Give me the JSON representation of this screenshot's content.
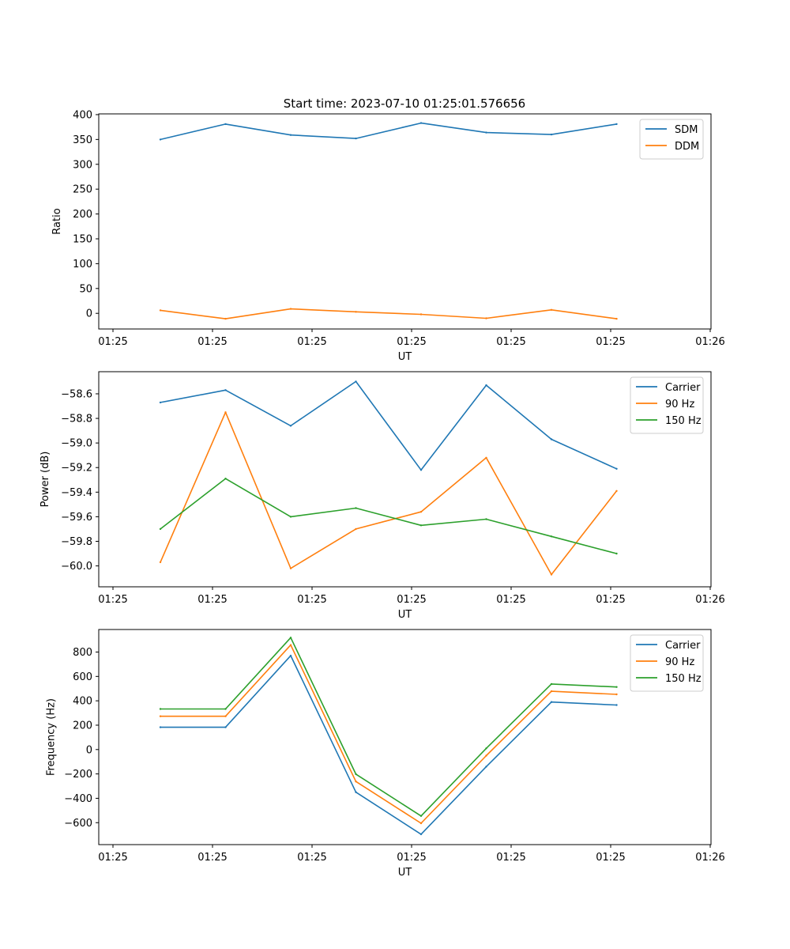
{
  "figure_title": "Start time: 2023-07-10 01:25:01.576656",
  "colors": {
    "blue": "#1f77b4",
    "orange": "#ff7f0e",
    "green": "#2ca02c"
  },
  "chart_data": [
    {
      "type": "line",
      "xlabel": "UT",
      "ylabel": "Ratio",
      "x_tick_labels": [
        "01:25",
        "01:25",
        "01:25",
        "01:25",
        "01:25",
        "01:25",
        "01:25",
        "01:26"
      ],
      "yticks": [
        0,
        50,
        100,
        150,
        200,
        250,
        300,
        350,
        400
      ],
      "ytick_labels": [
        "0",
        "50",
        "100",
        "150",
        "200",
        "250",
        "300",
        "350",
        "400"
      ],
      "ylim": [
        -31.5,
        401.5
      ],
      "legend_loc": "upper right",
      "series": [
        {
          "name": "SDM",
          "color": "#1f77b4",
          "values": [
            350,
            381,
            359,
            352,
            383,
            364,
            360,
            381
          ]
        },
        {
          "name": "DDM",
          "color": "#ff7f0e",
          "values": [
            6,
            -11,
            9,
            3,
            -2,
            -10,
            7,
            -11
          ]
        }
      ]
    },
    {
      "type": "line",
      "xlabel": "UT",
      "ylabel": "Power (dB)",
      "x_tick_labels": [
        "01:25",
        "01:25",
        "01:25",
        "01:25",
        "01:25",
        "01:25",
        "01:25",
        "01:26"
      ],
      "yticks": [
        -60.0,
        -59.8,
        -59.6,
        -59.4,
        -59.2,
        -59.0,
        -58.8,
        -58.6
      ],
      "ytick_labels": [
        "−60.0",
        "−59.8",
        "−59.6",
        "−59.4",
        "−59.2",
        "−59.0",
        "−58.8",
        "−58.6"
      ],
      "ylim": [
        -60.17,
        -58.42
      ],
      "legend_loc": "upper right",
      "series": [
        {
          "name": "Carrier",
          "color": "#1f77b4",
          "values": [
            -58.67,
            -58.57,
            -58.86,
            -58.5,
            -59.22,
            -58.53,
            -58.97,
            -59.21
          ]
        },
        {
          "name": "90 Hz",
          "color": "#ff7f0e",
          "values": [
            -59.97,
            -58.75,
            -60.02,
            -59.7,
            -59.56,
            -59.12,
            -60.07,
            -59.39
          ]
        },
        {
          "name": "150 Hz",
          "color": "#2ca02c",
          "values": [
            -59.7,
            -59.29,
            -59.6,
            -59.53,
            -59.67,
            -59.62,
            -59.76,
            -59.9
          ]
        }
      ]
    },
    {
      "type": "line",
      "xlabel": "UT",
      "ylabel": "Frequency (Hz)",
      "x_tick_labels": [
        "01:25",
        "01:25",
        "01:25",
        "01:25",
        "01:25",
        "01:25",
        "01:25",
        "01:26"
      ],
      "yticks": [
        -600,
        -400,
        -200,
        0,
        200,
        400,
        600,
        800
      ],
      "ytick_labels": [
        "−600",
        "−400",
        "−200",
        "0",
        "200",
        "400",
        "600",
        "800"
      ],
      "ylim": [
        -780,
        985
      ],
      "legend_loc": "upper right",
      "series": [
        {
          "name": "Carrier",
          "color": "#1f77b4",
          "values": [
            183,
            183,
            770,
            -350,
            -695,
            -140,
            390,
            365
          ]
        },
        {
          "name": "90 Hz",
          "color": "#ff7f0e",
          "values": [
            273,
            273,
            858,
            -262,
            -605,
            -50,
            478,
            453
          ]
        },
        {
          "name": "150 Hz",
          "color": "#2ca02c",
          "values": [
            333,
            333,
            918,
            -202,
            -545,
            10,
            538,
            513
          ]
        }
      ]
    }
  ]
}
